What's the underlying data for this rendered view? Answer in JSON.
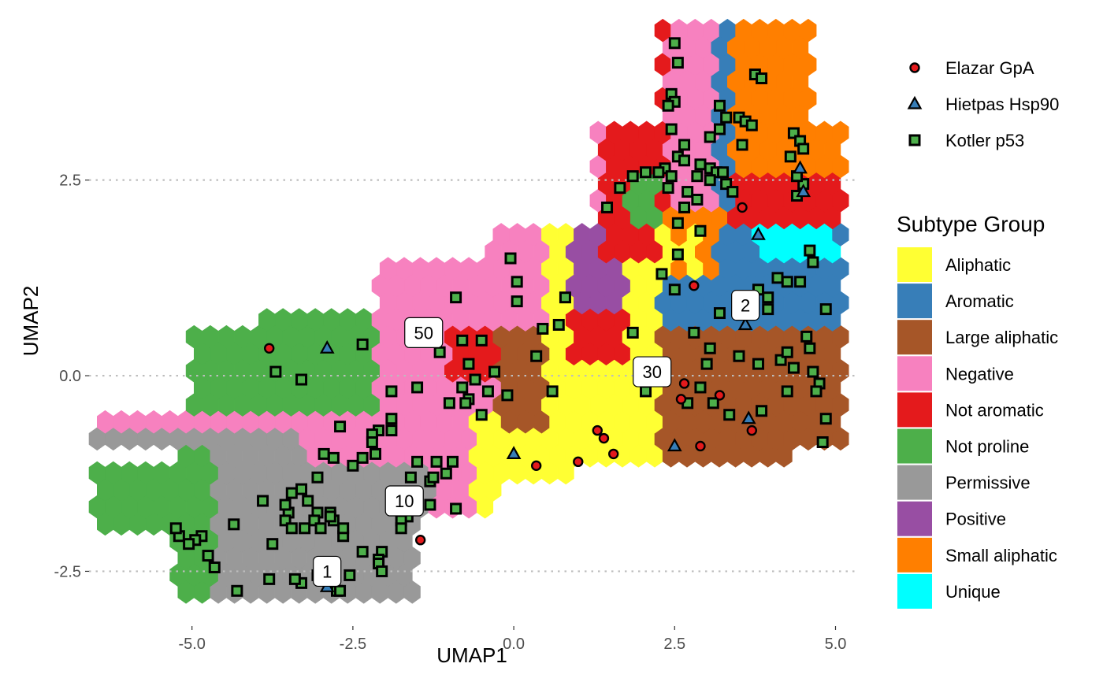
{
  "chart_data": {
    "type": "scatter",
    "title": "",
    "xlabel": "UMAP1",
    "ylabel": "UMAP2",
    "xlim": [
      -6.6,
      5.3
    ],
    "ylim": [
      -3.2,
      4.6
    ],
    "x_ticks": [
      -5.0,
      -2.5,
      0.0,
      2.5,
      5.0
    ],
    "x_tick_labels": [
      "-5.0",
      "-2.5",
      "0.0",
      "2.5",
      "5.0"
    ],
    "y_ticks": [
      2.5,
      0.0,
      -2.5
    ],
    "y_tick_labels": [
      "2.5",
      "0.0",
      "-2.5"
    ],
    "grid": "dotted horizontal lines at y ticks",
    "background_layer": "hexagonal bins colored by subtype group",
    "subtype_legend": {
      "title": "Subtype Group",
      "placement": "right",
      "items": [
        {
          "name": "Aliphatic",
          "color": "#FFFF33"
        },
        {
          "name": "Aromatic",
          "color": "#377EB8"
        },
        {
          "name": "Large aliphatic",
          "color": "#A65628"
        },
        {
          "name": "Negative",
          "color": "#F781BF"
        },
        {
          "name": "Not aromatic",
          "color": "#E41A1C"
        },
        {
          "name": "Not proline",
          "color": "#4DAF4A"
        },
        {
          "name": "Permissive",
          "color": "#999999"
        },
        {
          "name": "Positive",
          "color": "#984EA3"
        },
        {
          "name": "Small aliphatic",
          "color": "#FF7F00"
        },
        {
          "name": "Unique",
          "color": "#00FFFF"
        }
      ]
    },
    "study_legend": {
      "placement": "top-right",
      "items": [
        {
          "name": "Elazar GpA",
          "shape": "circle",
          "fill": "#E41A1C"
        },
        {
          "name": "Hietpas Hsp90",
          "shape": "triangle",
          "fill": "#377EB8"
        },
        {
          "name": "Kotler p53",
          "shape": "square",
          "fill": "#4DAF4A"
        }
      ]
    },
    "callouts": [
      {
        "text": "50",
        "x": -1.4,
        "y": 0.55
      },
      {
        "text": "30",
        "x": 2.15,
        "y": 0.05
      },
      {
        "text": "2",
        "x": 3.6,
        "y": 0.9
      },
      {
        "text": "10",
        "x": -1.7,
        "y": -1.6
      },
      {
        "text": "1",
        "x": -2.9,
        "y": -2.5
      }
    ],
    "series": [
      {
        "name": "Elazar GpA",
        "points": [
          [
            -3.8,
            0.35
          ],
          [
            2.8,
            1.15
          ],
          [
            3.55,
            2.15
          ],
          [
            2.65,
            -0.1
          ],
          [
            2.6,
            -0.3
          ],
          [
            3.2,
            -0.25
          ],
          [
            1.3,
            -0.7
          ],
          [
            1.4,
            -0.8
          ],
          [
            1.55,
            -1.0
          ],
          [
            1.0,
            -1.1
          ],
          [
            0.35,
            -1.15
          ],
          [
            2.9,
            -0.9
          ],
          [
            3.7,
            -0.7
          ],
          [
            -1.45,
            -2.1
          ]
        ]
      },
      {
        "name": "Hietpas Hsp90",
        "points": [
          [
            -2.9,
            0.35
          ],
          [
            3.8,
            1.8
          ],
          [
            4.45,
            2.65
          ],
          [
            4.5,
            2.35
          ],
          [
            3.6,
            0.65
          ],
          [
            0.0,
            -1.0
          ],
          [
            2.5,
            -0.9
          ],
          [
            3.65,
            -0.55
          ],
          [
            -2.9,
            -2.7
          ]
        ]
      },
      {
        "name": "Kotler p53",
        "points": [
          [
            2.5,
            4.25
          ],
          [
            2.55,
            4.0
          ],
          [
            3.75,
            3.85
          ],
          [
            3.85,
            3.8
          ],
          [
            2.45,
            3.6
          ],
          [
            2.5,
            3.5
          ],
          [
            2.4,
            3.45
          ],
          [
            3.2,
            3.45
          ],
          [
            3.3,
            3.3
          ],
          [
            3.5,
            3.3
          ],
          [
            3.6,
            3.25
          ],
          [
            3.7,
            3.2
          ],
          [
            3.2,
            3.15
          ],
          [
            2.45,
            3.15
          ],
          [
            3.05,
            3.05
          ],
          [
            2.65,
            2.95
          ],
          [
            3.55,
            2.95
          ],
          [
            4.35,
            3.1
          ],
          [
            4.45,
            3.0
          ],
          [
            4.5,
            2.9
          ],
          [
            2.55,
            2.8
          ],
          [
            2.65,
            2.75
          ],
          [
            2.9,
            2.7
          ],
          [
            3.05,
            2.65
          ],
          [
            3.15,
            2.6
          ],
          [
            3.25,
            2.6
          ],
          [
            2.35,
            2.65
          ],
          [
            2.45,
            2.55
          ],
          [
            2.85,
            2.55
          ],
          [
            3.05,
            2.5
          ],
          [
            3.3,
            2.45
          ],
          [
            3.4,
            2.35
          ],
          [
            1.65,
            2.4
          ],
          [
            1.85,
            2.55
          ],
          [
            2.05,
            2.6
          ],
          [
            2.25,
            2.6
          ],
          [
            2.4,
            2.4
          ],
          [
            2.7,
            2.35
          ],
          [
            2.85,
            2.25
          ],
          [
            2.65,
            2.15
          ],
          [
            1.45,
            2.15
          ],
          [
            2.55,
            1.95
          ],
          [
            2.9,
            1.85
          ],
          [
            4.4,
            2.3
          ],
          [
            4.5,
            2.45
          ],
          [
            4.3,
            2.8
          ],
          [
            4.4,
            2.55
          ],
          [
            2.55,
            1.55
          ],
          [
            2.3,
            1.3
          ],
          [
            2.5,
            1.1
          ],
          [
            3.8,
            1.1
          ],
          [
            3.95,
            1.0
          ],
          [
            4.45,
            1.2
          ],
          [
            4.6,
            1.6
          ],
          [
            4.65,
            1.45
          ],
          [
            4.1,
            1.25
          ],
          [
            4.25,
            1.2
          ],
          [
            3.95,
            0.85
          ],
          [
            4.85,
            0.85
          ],
          [
            3.2,
            0.8
          ],
          [
            3.05,
            0.35
          ],
          [
            2.8,
            0.55
          ],
          [
            3.0,
            0.15
          ],
          [
            3.5,
            0.25
          ],
          [
            3.8,
            0.15
          ],
          [
            4.15,
            0.2
          ],
          [
            4.25,
            0.3
          ],
          [
            4.55,
            0.5
          ],
          [
            4.6,
            0.35
          ],
          [
            4.35,
            0.1
          ],
          [
            4.65,
            0.05
          ],
          [
            4.75,
            -0.1
          ],
          [
            4.7,
            -0.2
          ],
          [
            4.25,
            -0.2
          ],
          [
            4.85,
            -0.55
          ],
          [
            4.8,
            -0.85
          ],
          [
            3.35,
            -0.5
          ],
          [
            3.85,
            -0.45
          ],
          [
            3.1,
            -0.35
          ],
          [
            2.9,
            -0.15
          ],
          [
            2.05,
            -0.2
          ],
          [
            2.7,
            -0.35
          ],
          [
            -0.05,
            1.5
          ],
          [
            0.05,
            1.2
          ],
          [
            0.8,
            1.0
          ],
          [
            1.85,
            0.55
          ],
          [
            0.7,
            0.65
          ],
          [
            0.45,
            0.6
          ],
          [
            0.35,
            0.25
          ],
          [
            0.6,
            -0.2
          ],
          [
            0.05,
            0.95
          ],
          [
            -0.9,
            1.0
          ],
          [
            -0.5,
            0.45
          ],
          [
            -0.8,
            0.45
          ],
          [
            -1.15,
            0.3
          ],
          [
            -1.6,
            0.6
          ],
          [
            -0.7,
            0.15
          ],
          [
            -0.6,
            -0.05
          ],
          [
            -0.8,
            -0.15
          ],
          [
            -0.3,
            0.05
          ],
          [
            -0.4,
            -0.2
          ],
          [
            -0.7,
            -0.3
          ],
          [
            -0.75,
            -0.35
          ],
          [
            -0.5,
            -0.5
          ],
          [
            -0.1,
            -0.25
          ],
          [
            -1.0,
            -0.35
          ],
          [
            -1.5,
            -0.15
          ],
          [
            -1.9,
            -0.2
          ],
          [
            -1.9,
            -0.55
          ],
          [
            -1.9,
            -0.7
          ],
          [
            -2.1,
            -0.7
          ],
          [
            -2.2,
            -0.75
          ],
          [
            -2.2,
            -0.85
          ],
          [
            -2.15,
            -1.0
          ],
          [
            -2.35,
            -1.05
          ],
          [
            -2.5,
            -1.15
          ],
          [
            -1.5,
            -1.1
          ],
          [
            -1.6,
            -1.3
          ],
          [
            -1.2,
            -1.1
          ],
          [
            -0.95,
            -1.1
          ],
          [
            -1.3,
            -1.35
          ],
          [
            -1.05,
            -1.25
          ],
          [
            -1.25,
            -1.3
          ],
          [
            -2.35,
            0.4
          ],
          [
            -3.7,
            0.05
          ],
          [
            -3.3,
            -0.05
          ],
          [
            -2.7,
            -0.65
          ],
          [
            -2.95,
            -1.0
          ],
          [
            -2.8,
            -1.05
          ],
          [
            -3.05,
            -1.3
          ],
          [
            -3.3,
            -1.45
          ],
          [
            -3.45,
            -1.5
          ],
          [
            -3.2,
            -1.6
          ],
          [
            -3.05,
            -1.75
          ],
          [
            -2.85,
            -1.75
          ],
          [
            -3.1,
            -1.85
          ],
          [
            -3.5,
            -1.75
          ],
          [
            -3.55,
            -1.85
          ],
          [
            -3.45,
            -1.95
          ],
          [
            -3.25,
            -1.95
          ],
          [
            -3.0,
            -1.95
          ],
          [
            -2.8,
            -1.85
          ],
          [
            -2.85,
            -1.8
          ],
          [
            -0.9,
            -1.7
          ],
          [
            -1.3,
            -1.65
          ],
          [
            -1.65,
            -1.8
          ],
          [
            -1.75,
            -1.85
          ],
          [
            -1.75,
            -1.95
          ],
          [
            -2.05,
            -2.25
          ],
          [
            -2.1,
            -2.35
          ],
          [
            -2.1,
            -2.4
          ],
          [
            -2.05,
            -2.5
          ],
          [
            -2.35,
            -2.25
          ],
          [
            -2.65,
            -2.05
          ],
          [
            -2.55,
            -2.55
          ],
          [
            -2.75,
            -2.75
          ],
          [
            -2.7,
            -2.75
          ],
          [
            -3.3,
            -2.65
          ],
          [
            -3.4,
            -2.6
          ],
          [
            -3.05,
            -2.55
          ],
          [
            -3.8,
            -2.6
          ],
          [
            -4.3,
            -2.75
          ],
          [
            -3.75,
            -2.15
          ],
          [
            -4.35,
            -1.9
          ],
          [
            -4.85,
            -2.05
          ],
          [
            -4.75,
            -2.3
          ],
          [
            -4.95,
            -2.1
          ],
          [
            -5.05,
            -2.15
          ],
          [
            -5.2,
            -2.05
          ],
          [
            -5.25,
            -1.95
          ],
          [
            -4.65,
            -2.45
          ],
          [
            -3.9,
            -1.6
          ],
          [
            -3.55,
            -1.65
          ],
          [
            -2.65,
            -1.95
          ]
        ]
      }
    ]
  }
}
